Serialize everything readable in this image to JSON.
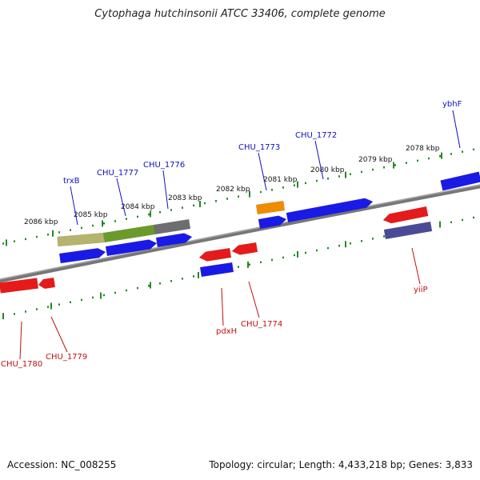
{
  "title": "Cytophaga hutchinsonii ATCC 33406, complete genome",
  "accession": "Accession: NC_008255",
  "info": "Topology: circular; Length: 4,433,218 bp; Genes: 3,833",
  "ticks": [
    {
      "label": "2086 kbp"
    },
    {
      "label": "2085 kbp"
    },
    {
      "label": "2084 kbp"
    },
    {
      "label": "2083 kbp"
    },
    {
      "label": "2082 kbp"
    },
    {
      "label": "2081 kbp"
    },
    {
      "label": "2080 kbp"
    },
    {
      "label": "2079 kbp"
    },
    {
      "label": "2078 kbp"
    }
  ],
  "top_labels": [
    {
      "text": "trxB",
      "color": "#1010c0"
    },
    {
      "text": "CHU_1777",
      "color": "#1010c0"
    },
    {
      "text": "CHU_1776",
      "color": "#1010c0"
    },
    {
      "text": "CHU_1773",
      "color": "#1010c0"
    },
    {
      "text": "CHU_1772",
      "color": "#1010c0"
    },
    {
      "text": "ybhF",
      "color": "#1010c0"
    }
  ],
  "bottom_labels": [
    {
      "text": "CHU_1780",
      "color": "#c01010"
    },
    {
      "text": "CHU_1779",
      "color": "#c01010"
    },
    {
      "text": "pdxH",
      "color": "#c01010"
    },
    {
      "text": "CHU_1774",
      "color": "#c01010"
    },
    {
      "text": "yiiP",
      "color": "#c01010"
    }
  ],
  "colors": {
    "forward_gene": "#1a1ae6",
    "reverse_gene": "#e61a1a",
    "backbone": "#777777",
    "tick": "#228b22",
    "orange_feature": "#f08c00",
    "olive_feature": "#b4b46e",
    "green_feature": "#6b9a2a",
    "gray_feature": "#6e6e6e",
    "purple_feature": "#4a4a96"
  }
}
